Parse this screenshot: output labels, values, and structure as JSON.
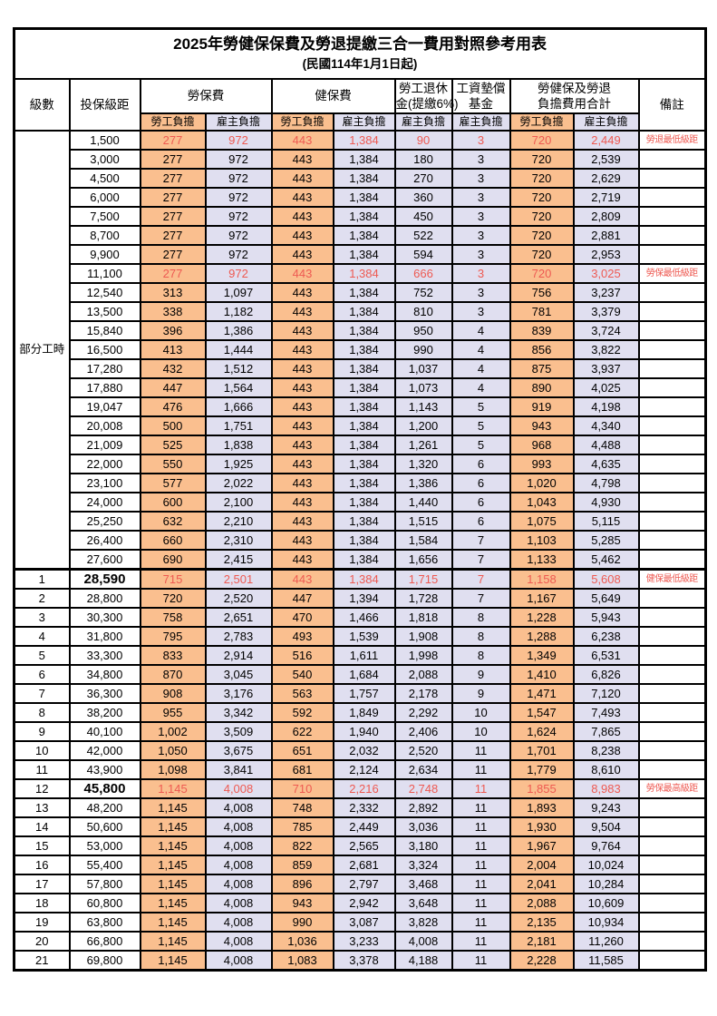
{
  "title": "2025年勞健保保費及勞退提繳三合一費用對照參考用表",
  "subtitle": "(民國114年1月1日起)",
  "header": {
    "level": "級數",
    "bracket": "投保級距",
    "labor_insurance": "勞保費",
    "health_insurance": "健保費",
    "pension_line1": "勞工退休",
    "pension_line2": "金(提繳6%)",
    "fund_line1": "工資墊償",
    "fund_line2": "基金",
    "total_line1": "勞健保及勞退",
    "total_line2": "負擔費用合計",
    "remark": "備註",
    "employee": "勞工負擔",
    "employer": "雇主負擔"
  },
  "part_time_label": "部分工時",
  "part_time_rowspan": 23,
  "colors": {
    "employee_bg": "#FABF8F",
    "employer_bg": "#E0DFF0",
    "highlight_text": "#EE5A52",
    "border": "#000000"
  },
  "rows": [
    {
      "level": "",
      "bracket": "1,500",
      "li_e": "277",
      "li_r": "972",
      "hi_e": "443",
      "hi_r": "1,384",
      "pen": "90",
      "fund": "3",
      "tot_e": "720",
      "tot_r": "2,449",
      "remark": "勞退最低級距",
      "red": true
    },
    {
      "level": "",
      "bracket": "3,000",
      "li_e": "277",
      "li_r": "972",
      "hi_e": "443",
      "hi_r": "1,384",
      "pen": "180",
      "fund": "3",
      "tot_e": "720",
      "tot_r": "2,539",
      "remark": ""
    },
    {
      "level": "",
      "bracket": "4,500",
      "li_e": "277",
      "li_r": "972",
      "hi_e": "443",
      "hi_r": "1,384",
      "pen": "270",
      "fund": "3",
      "tot_e": "720",
      "tot_r": "2,629",
      "remark": ""
    },
    {
      "level": "",
      "bracket": "6,000",
      "li_e": "277",
      "li_r": "972",
      "hi_e": "443",
      "hi_r": "1,384",
      "pen": "360",
      "fund": "3",
      "tot_e": "720",
      "tot_r": "2,719",
      "remark": ""
    },
    {
      "level": "",
      "bracket": "7,500",
      "li_e": "277",
      "li_r": "972",
      "hi_e": "443",
      "hi_r": "1,384",
      "pen": "450",
      "fund": "3",
      "tot_e": "720",
      "tot_r": "2,809",
      "remark": ""
    },
    {
      "level": "",
      "bracket": "8,700",
      "li_e": "277",
      "li_r": "972",
      "hi_e": "443",
      "hi_r": "1,384",
      "pen": "522",
      "fund": "3",
      "tot_e": "720",
      "tot_r": "2,881",
      "remark": ""
    },
    {
      "level": "",
      "bracket": "9,900",
      "li_e": "277",
      "li_r": "972",
      "hi_e": "443",
      "hi_r": "1,384",
      "pen": "594",
      "fund": "3",
      "tot_e": "720",
      "tot_r": "2,953",
      "remark": ""
    },
    {
      "level": "",
      "bracket": "11,100",
      "li_e": "277",
      "li_r": "972",
      "hi_e": "443",
      "hi_r": "1,384",
      "pen": "666",
      "fund": "3",
      "tot_e": "720",
      "tot_r": "3,025",
      "remark": "勞保最低級距",
      "red": true
    },
    {
      "level": "",
      "bracket": "12,540",
      "li_e": "313",
      "li_r": "1,097",
      "hi_e": "443",
      "hi_r": "1,384",
      "pen": "752",
      "fund": "3",
      "tot_e": "756",
      "tot_r": "3,237",
      "remark": ""
    },
    {
      "level": "",
      "bracket": "13,500",
      "li_e": "338",
      "li_r": "1,182",
      "hi_e": "443",
      "hi_r": "1,384",
      "pen": "810",
      "fund": "3",
      "tot_e": "781",
      "tot_r": "3,379",
      "remark": ""
    },
    {
      "level": "",
      "bracket": "15,840",
      "li_e": "396",
      "li_r": "1,386",
      "hi_e": "443",
      "hi_r": "1,384",
      "pen": "950",
      "fund": "4",
      "tot_e": "839",
      "tot_r": "3,724",
      "remark": ""
    },
    {
      "level": "",
      "bracket": "16,500",
      "li_e": "413",
      "li_r": "1,444",
      "hi_e": "443",
      "hi_r": "1,384",
      "pen": "990",
      "fund": "4",
      "tot_e": "856",
      "tot_r": "3,822",
      "remark": ""
    },
    {
      "level": "",
      "bracket": "17,280",
      "li_e": "432",
      "li_r": "1,512",
      "hi_e": "443",
      "hi_r": "1,384",
      "pen": "1,037",
      "fund": "4",
      "tot_e": "875",
      "tot_r": "3,937",
      "remark": ""
    },
    {
      "level": "",
      "bracket": "17,880",
      "li_e": "447",
      "li_r": "1,564",
      "hi_e": "443",
      "hi_r": "1,384",
      "pen": "1,073",
      "fund": "4",
      "tot_e": "890",
      "tot_r": "4,025",
      "remark": ""
    },
    {
      "level": "",
      "bracket": "19,047",
      "li_e": "476",
      "li_r": "1,666",
      "hi_e": "443",
      "hi_r": "1,384",
      "pen": "1,143",
      "fund": "5",
      "tot_e": "919",
      "tot_r": "4,198",
      "remark": ""
    },
    {
      "level": "",
      "bracket": "20,008",
      "li_e": "500",
      "li_r": "1,751",
      "hi_e": "443",
      "hi_r": "1,384",
      "pen": "1,200",
      "fund": "5",
      "tot_e": "943",
      "tot_r": "4,340",
      "remark": ""
    },
    {
      "level": "",
      "bracket": "21,009",
      "li_e": "525",
      "li_r": "1,838",
      "hi_e": "443",
      "hi_r": "1,384",
      "pen": "1,261",
      "fund": "5",
      "tot_e": "968",
      "tot_r": "4,488",
      "remark": ""
    },
    {
      "level": "",
      "bracket": "22,000",
      "li_e": "550",
      "li_r": "1,925",
      "hi_e": "443",
      "hi_r": "1,384",
      "pen": "1,320",
      "fund": "6",
      "tot_e": "993",
      "tot_r": "4,635",
      "remark": ""
    },
    {
      "level": "",
      "bracket": "23,100",
      "li_e": "577",
      "li_r": "2,022",
      "hi_e": "443",
      "hi_r": "1,384",
      "pen": "1,386",
      "fund": "6",
      "tot_e": "1,020",
      "tot_r": "4,798",
      "remark": ""
    },
    {
      "level": "",
      "bracket": "24,000",
      "li_e": "600",
      "li_r": "2,100",
      "hi_e": "443",
      "hi_r": "1,384",
      "pen": "1,440",
      "fund": "6",
      "tot_e": "1,043",
      "tot_r": "4,930",
      "remark": ""
    },
    {
      "level": "",
      "bracket": "25,250",
      "li_e": "632",
      "li_r": "2,210",
      "hi_e": "443",
      "hi_r": "1,384",
      "pen": "1,515",
      "fund": "6",
      "tot_e": "1,075",
      "tot_r": "5,115",
      "remark": ""
    },
    {
      "level": "",
      "bracket": "26,400",
      "li_e": "660",
      "li_r": "2,310",
      "hi_e": "443",
      "hi_r": "1,384",
      "pen": "1,584",
      "fund": "7",
      "tot_e": "1,103",
      "tot_r": "5,285",
      "remark": ""
    },
    {
      "level": "",
      "bracket": "27,600",
      "li_e": "690",
      "li_r": "2,415",
      "hi_e": "443",
      "hi_r": "1,384",
      "pen": "1,656",
      "fund": "7",
      "tot_e": "1,133",
      "tot_r": "5,462",
      "remark": ""
    },
    {
      "level": "1",
      "bracket": "28,590",
      "li_e": "715",
      "li_r": "2,501",
      "hi_e": "443",
      "hi_r": "1,384",
      "pen": "1,715",
      "fund": "7",
      "tot_e": "1,158",
      "tot_r": "5,608",
      "remark": "健保最低級距",
      "red": true,
      "em": true,
      "sec": true
    },
    {
      "level": "2",
      "bracket": "28,800",
      "li_e": "720",
      "li_r": "2,520",
      "hi_e": "447",
      "hi_r": "1,394",
      "pen": "1,728",
      "fund": "7",
      "tot_e": "1,167",
      "tot_r": "5,649",
      "remark": ""
    },
    {
      "level": "3",
      "bracket": "30,300",
      "li_e": "758",
      "li_r": "2,651",
      "hi_e": "470",
      "hi_r": "1,466",
      "pen": "1,818",
      "fund": "8",
      "tot_e": "1,228",
      "tot_r": "5,943",
      "remark": ""
    },
    {
      "level": "4",
      "bracket": "31,800",
      "li_e": "795",
      "li_r": "2,783",
      "hi_e": "493",
      "hi_r": "1,539",
      "pen": "1,908",
      "fund": "8",
      "tot_e": "1,288",
      "tot_r": "6,238",
      "remark": ""
    },
    {
      "level": "5",
      "bracket": "33,300",
      "li_e": "833",
      "li_r": "2,914",
      "hi_e": "516",
      "hi_r": "1,611",
      "pen": "1,998",
      "fund": "8",
      "tot_e": "1,349",
      "tot_r": "6,531",
      "remark": ""
    },
    {
      "level": "6",
      "bracket": "34,800",
      "li_e": "870",
      "li_r": "3,045",
      "hi_e": "540",
      "hi_r": "1,684",
      "pen": "2,088",
      "fund": "9",
      "tot_e": "1,410",
      "tot_r": "6,826",
      "remark": ""
    },
    {
      "level": "7",
      "bracket": "36,300",
      "li_e": "908",
      "li_r": "3,176",
      "hi_e": "563",
      "hi_r": "1,757",
      "pen": "2,178",
      "fund": "9",
      "tot_e": "1,471",
      "tot_r": "7,120",
      "remark": ""
    },
    {
      "level": "8",
      "bracket": "38,200",
      "li_e": "955",
      "li_r": "3,342",
      "hi_e": "592",
      "hi_r": "1,849",
      "pen": "2,292",
      "fund": "10",
      "tot_e": "1,547",
      "tot_r": "7,493",
      "remark": ""
    },
    {
      "level": "9",
      "bracket": "40,100",
      "li_e": "1,002",
      "li_r": "3,509",
      "hi_e": "622",
      "hi_r": "1,940",
      "pen": "2,406",
      "fund": "10",
      "tot_e": "1,624",
      "tot_r": "7,865",
      "remark": ""
    },
    {
      "level": "10",
      "bracket": "42,000",
      "li_e": "1,050",
      "li_r": "3,675",
      "hi_e": "651",
      "hi_r": "2,032",
      "pen": "2,520",
      "fund": "11",
      "tot_e": "1,701",
      "tot_r": "8,238",
      "remark": ""
    },
    {
      "level": "11",
      "bracket": "43,900",
      "li_e": "1,098",
      "li_r": "3,841",
      "hi_e": "681",
      "hi_r": "2,124",
      "pen": "2,634",
      "fund": "11",
      "tot_e": "1,779",
      "tot_r": "8,610",
      "remark": ""
    },
    {
      "level": "12",
      "bracket": "45,800",
      "li_e": "1,145",
      "li_r": "4,008",
      "hi_e": "710",
      "hi_r": "2,216",
      "pen": "2,748",
      "fund": "11",
      "tot_e": "1,855",
      "tot_r": "8,983",
      "remark": "勞保最高級距",
      "red": true,
      "em": true
    },
    {
      "level": "13",
      "bracket": "48,200",
      "li_e": "1,145",
      "li_r": "4,008",
      "hi_e": "748",
      "hi_r": "2,332",
      "pen": "2,892",
      "fund": "11",
      "tot_e": "1,893",
      "tot_r": "9,243",
      "remark": ""
    },
    {
      "level": "14",
      "bracket": "50,600",
      "li_e": "1,145",
      "li_r": "4,008",
      "hi_e": "785",
      "hi_r": "2,449",
      "pen": "3,036",
      "fund": "11",
      "tot_e": "1,930",
      "tot_r": "9,504",
      "remark": ""
    },
    {
      "level": "15",
      "bracket": "53,000",
      "li_e": "1,145",
      "li_r": "4,008",
      "hi_e": "822",
      "hi_r": "2,565",
      "pen": "3,180",
      "fund": "11",
      "tot_e": "1,967",
      "tot_r": "9,764",
      "remark": ""
    },
    {
      "level": "16",
      "bracket": "55,400",
      "li_e": "1,145",
      "li_r": "4,008",
      "hi_e": "859",
      "hi_r": "2,681",
      "pen": "3,324",
      "fund": "11",
      "tot_e": "2,004",
      "tot_r": "10,024",
      "remark": ""
    },
    {
      "level": "17",
      "bracket": "57,800",
      "li_e": "1,145",
      "li_r": "4,008",
      "hi_e": "896",
      "hi_r": "2,797",
      "pen": "3,468",
      "fund": "11",
      "tot_e": "2,041",
      "tot_r": "10,284",
      "remark": ""
    },
    {
      "level": "18",
      "bracket": "60,800",
      "li_e": "1,145",
      "li_r": "4,008",
      "hi_e": "943",
      "hi_r": "2,942",
      "pen": "3,648",
      "fund": "11",
      "tot_e": "2,088",
      "tot_r": "10,609",
      "remark": ""
    },
    {
      "level": "19",
      "bracket": "63,800",
      "li_e": "1,145",
      "li_r": "4,008",
      "hi_e": "990",
      "hi_r": "3,087",
      "pen": "3,828",
      "fund": "11",
      "tot_e": "2,135",
      "tot_r": "10,934",
      "remark": ""
    },
    {
      "level": "20",
      "bracket": "66,800",
      "li_e": "1,145",
      "li_r": "4,008",
      "hi_e": "1,036",
      "hi_r": "3,233",
      "pen": "4,008",
      "fund": "11",
      "tot_e": "2,181",
      "tot_r": "11,260",
      "remark": ""
    },
    {
      "level": "21",
      "bracket": "69,800",
      "li_e": "1,145",
      "li_r": "4,008",
      "hi_e": "1,083",
      "hi_r": "3,378",
      "pen": "4,188",
      "fund": "11",
      "tot_e": "2,228",
      "tot_r": "11,585",
      "remark": ""
    }
  ]
}
